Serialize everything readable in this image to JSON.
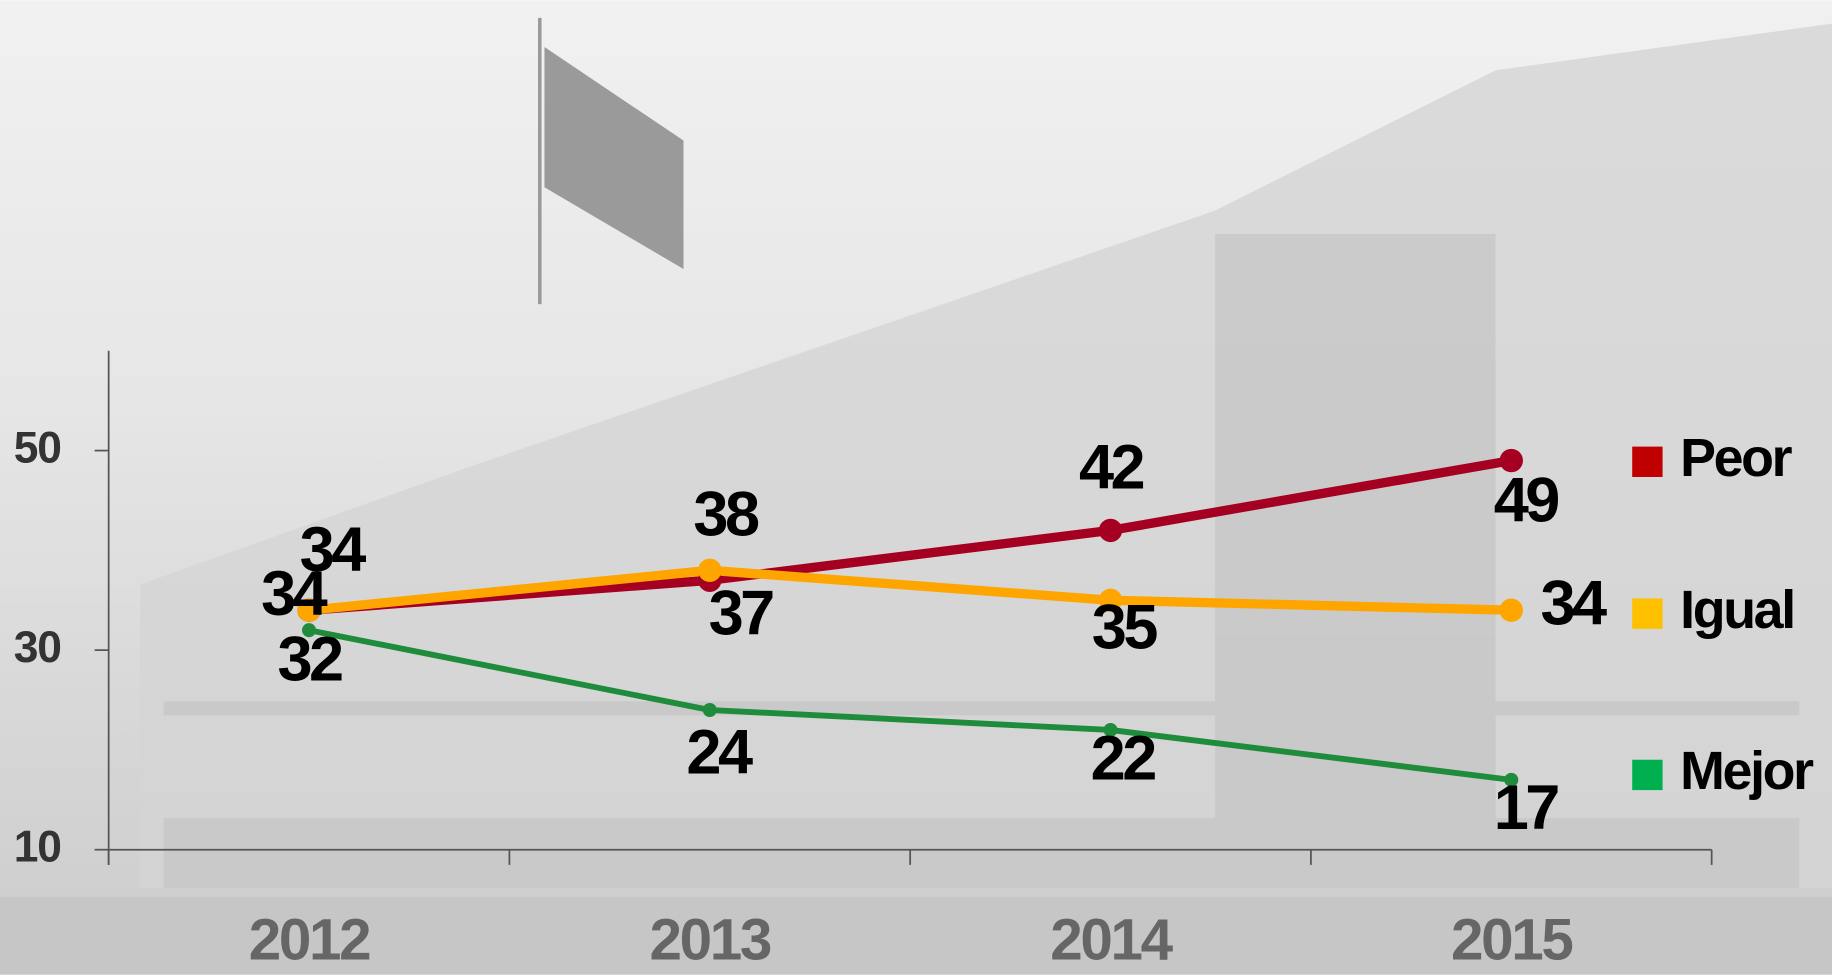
{
  "chart_data": {
    "type": "line",
    "categories": [
      "2012",
      "2013",
      "2014",
      "2015"
    ],
    "series": [
      {
        "name": "Peor",
        "color": "#a50021",
        "legend_color": "#c00000",
        "values": [
          34,
          37,
          42,
          49
        ]
      },
      {
        "name": "Igual",
        "color": "#ffa500",
        "legend_color": "#ffc000",
        "values": [
          34,
          38,
          35,
          34
        ]
      },
      {
        "name": "Mejor",
        "color": "#1e8c3a",
        "legend_color": "#00b050",
        "values": [
          32,
          24,
          22,
          17
        ]
      }
    ],
    "ylim": [
      10,
      60
    ],
    "yticks": [
      10,
      30,
      50
    ]
  }
}
